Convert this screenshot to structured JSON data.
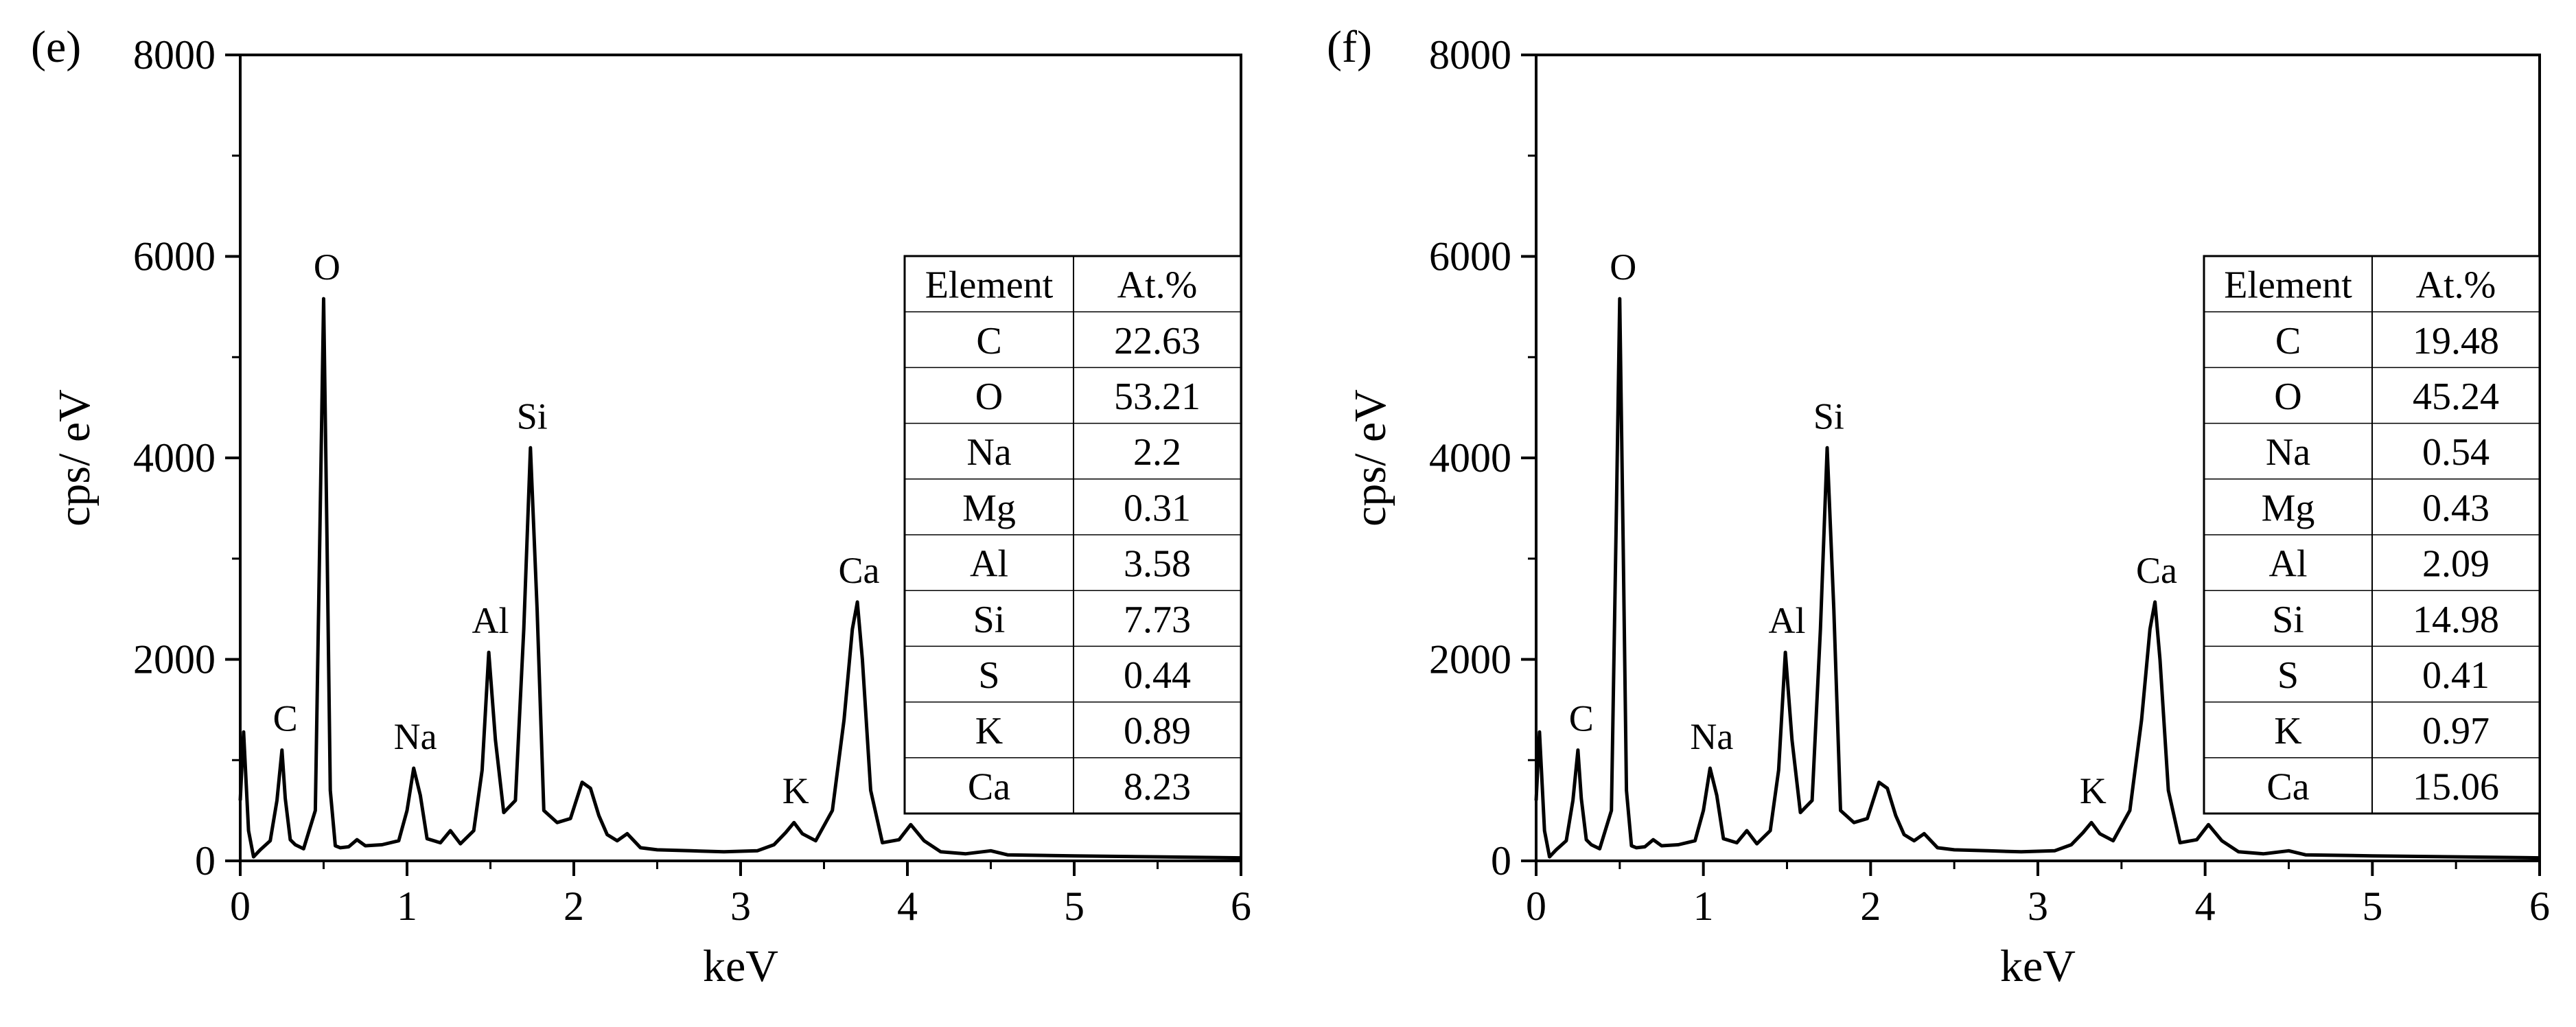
{
  "chart_data": [
    {
      "panel_label": "(e)",
      "type": "line",
      "xlabel": "keV",
      "ylabel": "cps/ eV",
      "xlim": [
        0,
        6
      ],
      "ylim": [
        0,
        8000
      ],
      "x_ticks": [
        "0",
        "1",
        "2",
        "3",
        "4",
        "5",
        "6"
      ],
      "y_ticks": [
        "0",
        "2000",
        "4000",
        "6000",
        "8000"
      ],
      "series": [
        {
          "x": [
            0.0,
            0.02,
            0.05,
            0.08,
            0.12,
            0.18,
            0.22,
            0.25,
            0.27,
            0.3,
            0.33,
            0.38,
            0.45,
            0.48,
            0.5,
            0.52,
            0.54,
            0.57,
            0.6,
            0.65,
            0.7,
            0.75,
            0.85,
            0.95,
            1.0,
            1.04,
            1.08,
            1.12,
            1.2,
            1.26,
            1.32,
            1.4,
            1.45,
            1.49,
            1.53,
            1.58,
            1.65,
            1.7,
            1.74,
            1.78,
            1.82,
            1.9,
            1.98,
            2.05,
            2.1,
            2.15,
            2.2,
            2.26,
            2.32,
            2.4,
            2.5,
            2.7,
            2.9,
            3.1,
            3.2,
            3.27,
            3.32,
            3.37,
            3.45,
            3.55,
            3.62,
            3.67,
            3.7,
            3.73,
            3.78,
            3.85,
            3.95,
            4.02,
            4.1,
            4.2,
            4.35,
            4.5,
            4.6,
            5.0,
            5.5,
            6.0
          ],
          "y": [
            600,
            1280,
            300,
            40,
            110,
            200,
            600,
            1100,
            620,
            210,
            160,
            120,
            500,
            3500,
            5580,
            3200,
            700,
            150,
            130,
            140,
            210,
            150,
            160,
            200,
            500,
            920,
            650,
            220,
            180,
            300,
            170,
            300,
            900,
            2070,
            1200,
            480,
            600,
            2300,
            4100,
            2500,
            500,
            380,
            420,
            780,
            720,
            450,
            260,
            200,
            270,
            130,
            110,
            100,
            90,
            100,
            160,
            280,
            380,
            270,
            200,
            500,
            1400,
            2300,
            2570,
            2000,
            700,
            180,
            210,
            360,
            200,
            90,
            70,
            100,
            60,
            50,
            40,
            30
          ]
        }
      ],
      "peak_labels": [
        {
          "text": "O",
          "x": 0.52,
          "y": 5580
        },
        {
          "text": "C",
          "x": 0.27,
          "y": 1100
        },
        {
          "text": "Na",
          "x": 1.05,
          "y": 920
        },
        {
          "text": "Al",
          "x": 1.5,
          "y": 2070
        },
        {
          "text": "Si",
          "x": 1.75,
          "y": 4100
        },
        {
          "text": "K",
          "x": 3.33,
          "y": 380
        },
        {
          "text": "Ca",
          "x": 3.71,
          "y": 2570
        }
      ],
      "table": {
        "headers": [
          "Element",
          "At.%"
        ],
        "rows": [
          [
            "C",
            "22.63"
          ],
          [
            "O",
            "53.21"
          ],
          [
            "Na",
            "2.2"
          ],
          [
            "Mg",
            "0.31"
          ],
          [
            "Al",
            "3.58"
          ],
          [
            "Si",
            "7.73"
          ],
          [
            "S",
            "0.44"
          ],
          [
            "K",
            "0.89"
          ],
          [
            "Ca",
            "8.23"
          ]
        ]
      }
    },
    {
      "panel_label": "(f)",
      "type": "line",
      "xlabel": "keV",
      "ylabel": "cps/ eV",
      "xlim": [
        0,
        6
      ],
      "ylim": [
        0,
        8000
      ],
      "x_ticks": [
        "0",
        "1",
        "2",
        "3",
        "4",
        "5",
        "6"
      ],
      "y_ticks": [
        "0",
        "2000",
        "4000",
        "6000",
        "8000"
      ],
      "series": [
        {
          "x": [
            0.0,
            0.02,
            0.05,
            0.08,
            0.12,
            0.18,
            0.22,
            0.25,
            0.27,
            0.3,
            0.33,
            0.38,
            0.45,
            0.48,
            0.5,
            0.52,
            0.54,
            0.57,
            0.6,
            0.65,
            0.7,
            0.75,
            0.85,
            0.95,
            1.0,
            1.04,
            1.08,
            1.12,
            1.2,
            1.26,
            1.32,
            1.4,
            1.45,
            1.49,
            1.53,
            1.58,
            1.65,
            1.7,
            1.74,
            1.78,
            1.82,
            1.9,
            1.98,
            2.05,
            2.1,
            2.15,
            2.2,
            2.26,
            2.32,
            2.4,
            2.5,
            2.7,
            2.9,
            3.1,
            3.2,
            3.27,
            3.32,
            3.37,
            3.45,
            3.55,
            3.62,
            3.67,
            3.7,
            3.73,
            3.78,
            3.85,
            3.95,
            4.02,
            4.1,
            4.2,
            4.35,
            4.5,
            4.6,
            5.0,
            5.5,
            6.0
          ],
          "y": [
            600,
            1280,
            300,
            40,
            110,
            200,
            600,
            1100,
            620,
            210,
            160,
            120,
            500,
            3500,
            5580,
            3200,
            700,
            150,
            130,
            140,
            210,
            150,
            160,
            200,
            500,
            920,
            650,
            220,
            180,
            300,
            170,
            300,
            900,
            2070,
            1200,
            480,
            600,
            2300,
            4100,
            2500,
            500,
            380,
            420,
            780,
            720,
            450,
            260,
            200,
            270,
            130,
            110,
            100,
            90,
            100,
            160,
            280,
            380,
            270,
            200,
            500,
            1400,
            2300,
            2570,
            2000,
            700,
            180,
            210,
            360,
            200,
            90,
            70,
            100,
            60,
            50,
            40,
            30
          ]
        }
      ],
      "peak_labels": [
        {
          "text": "O",
          "x": 0.52,
          "y": 5580
        },
        {
          "text": "C",
          "x": 0.27,
          "y": 1100
        },
        {
          "text": "Na",
          "x": 1.05,
          "y": 920
        },
        {
          "text": "Al",
          "x": 1.5,
          "y": 2070
        },
        {
          "text": "Si",
          "x": 1.75,
          "y": 4100
        },
        {
          "text": "K",
          "x": 3.33,
          "y": 380
        },
        {
          "text": "Ca",
          "x": 3.71,
          "y": 2570
        }
      ],
      "table": {
        "headers": [
          "Element",
          "At.%"
        ],
        "rows": [
          [
            "C",
            "19.48"
          ],
          [
            "O",
            "45.24"
          ],
          [
            "Na",
            "0.54"
          ],
          [
            "Mg",
            "0.43"
          ],
          [
            "Al",
            "2.09"
          ],
          [
            "Si",
            "14.98"
          ],
          [
            "S",
            "0.41"
          ],
          [
            "K",
            "0.97"
          ],
          [
            "Ca",
            "15.06"
          ]
        ]
      }
    }
  ]
}
